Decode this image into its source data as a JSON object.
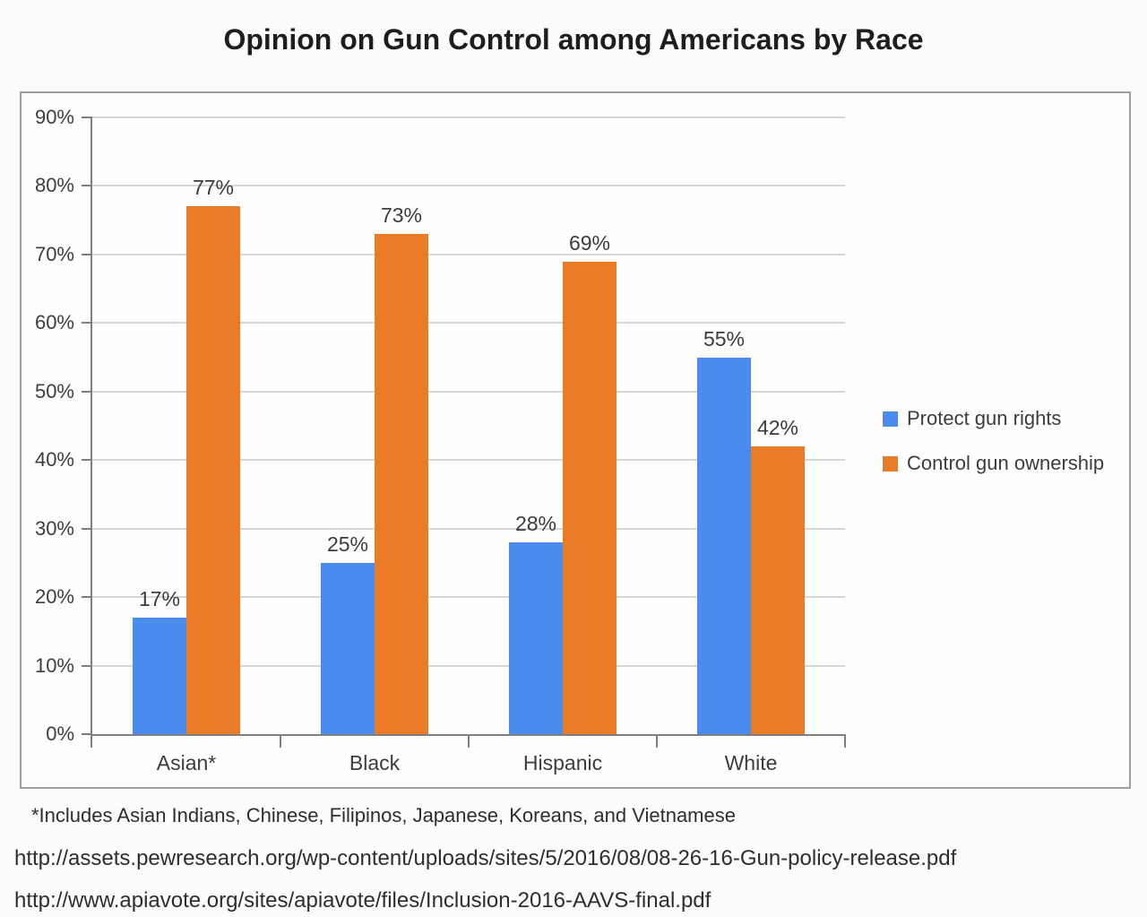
{
  "page": {
    "title": "Opinion on Gun Control among Americans by Race",
    "footnote": "*Includes Asian Indians, Chinese, Filipinos, Japanese, Koreans, and Vietnamese",
    "sources": [
      "http://assets.pewresearch.org/wp-content/uploads/sites/5/2016/08/08-26-16-Gun-policy-release.pdf",
      "http://www.apiavote.org/sites/apiavote/files/Inclusion-2016-AAVS-final.pdf"
    ]
  },
  "colors": {
    "protect_gun_rights": "#4a8bee",
    "control_gun_ownership": "#ea7c28",
    "gridline": "#d6d6d6",
    "axis": "#7f7f7f",
    "text": "#3c3c3c"
  },
  "chart_data": {
    "type": "bar",
    "title": "Opinion on Gun Control among Americans by Race",
    "categories": [
      "Asian*",
      "Black",
      "Hispanic",
      "White"
    ],
    "series": [
      {
        "name": "Protect gun rights",
        "color": "#4a8bee",
        "values": [
          17,
          25,
          28,
          55
        ]
      },
      {
        "name": "Control gun ownership",
        "color": "#ea7c28",
        "values": [
          77,
          73,
          69,
          42
        ]
      }
    ],
    "data_labels_shown": true,
    "data_label_suffix": "%",
    "ylim": [
      0,
      90
    ],
    "ytick_step": 10,
    "ytick_labels": [
      "0%",
      "10%",
      "20%",
      "30%",
      "40%",
      "50%",
      "60%",
      "70%",
      "80%",
      "90%"
    ],
    "grid": true,
    "legend_position": "right"
  }
}
